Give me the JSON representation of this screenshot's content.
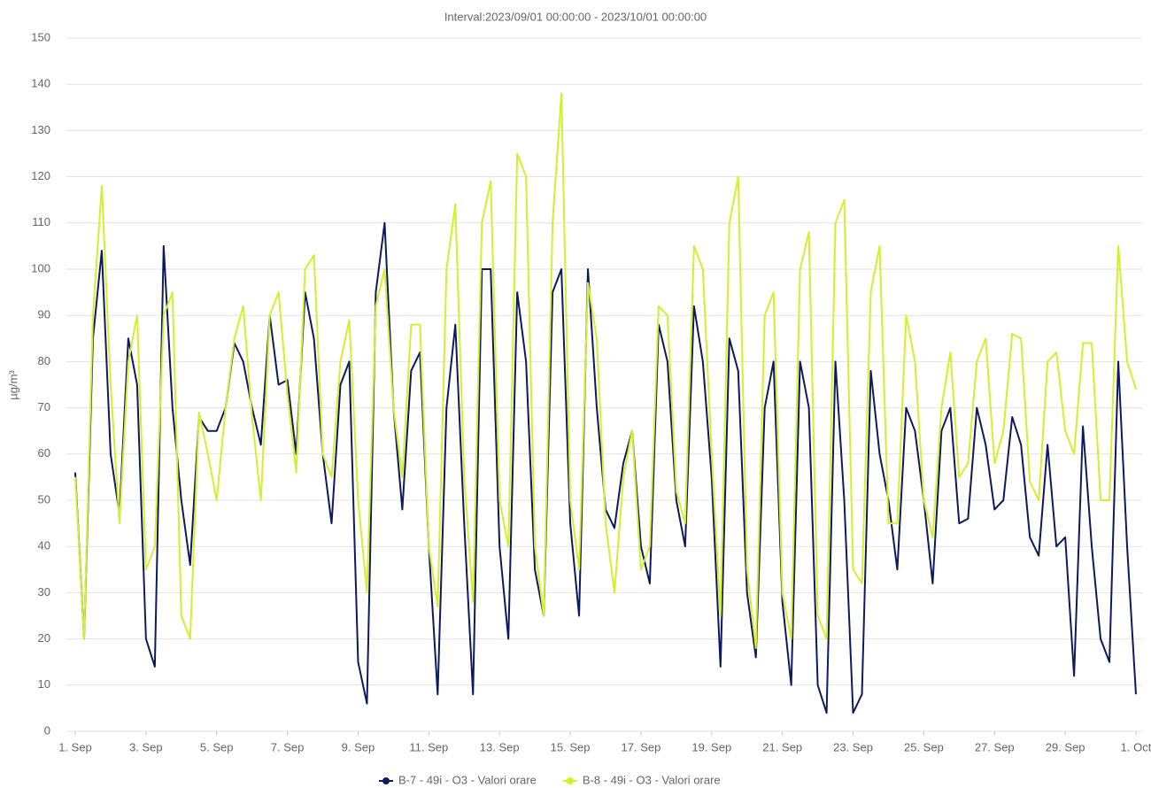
{
  "chart_data": {
    "type": "line",
    "title": "Interval:2023/09/01 00:00:00 - 2023/10/01 00:00:00",
    "y_label": "µg/m³",
    "x": [
      "2023-09-01 00:00",
      "2023-09-01 06:00",
      "2023-09-01 12:00",
      "2023-09-01 18:00",
      "2023-09-02 00:00",
      "2023-09-02 06:00",
      "2023-09-02 12:00",
      "2023-09-02 18:00",
      "2023-09-03 00:00",
      "2023-09-03 06:00",
      "2023-09-03 12:00",
      "2023-09-03 18:00",
      "2023-09-04 00:00",
      "2023-09-04 06:00",
      "2023-09-04 12:00",
      "2023-09-04 18:00",
      "2023-09-05 00:00",
      "2023-09-05 06:00",
      "2023-09-05 12:00",
      "2023-09-05 18:00",
      "2023-09-06 00:00",
      "2023-09-06 06:00",
      "2023-09-06 12:00",
      "2023-09-06 18:00",
      "2023-09-07 00:00",
      "2023-09-07 06:00",
      "2023-09-07 12:00",
      "2023-09-07 18:00",
      "2023-09-08 00:00",
      "2023-09-08 06:00",
      "2023-09-08 12:00",
      "2023-09-08 18:00",
      "2023-09-09 00:00",
      "2023-09-09 06:00",
      "2023-09-09 12:00",
      "2023-09-09 18:00",
      "2023-09-10 00:00",
      "2023-09-10 06:00",
      "2023-09-10 12:00",
      "2023-09-10 18:00",
      "2023-09-11 00:00",
      "2023-09-11 06:00",
      "2023-09-11 12:00",
      "2023-09-11 18:00",
      "2023-09-12 00:00",
      "2023-09-12 06:00",
      "2023-09-12 12:00",
      "2023-09-12 18:00",
      "2023-09-13 00:00",
      "2023-09-13 06:00",
      "2023-09-13 12:00",
      "2023-09-13 18:00",
      "2023-09-14 00:00",
      "2023-09-14 06:00",
      "2023-09-14 12:00",
      "2023-09-14 18:00",
      "2023-09-15 00:00",
      "2023-09-15 06:00",
      "2023-09-15 12:00",
      "2023-09-15 18:00",
      "2023-09-16 00:00",
      "2023-09-16 06:00",
      "2023-09-16 12:00",
      "2023-09-16 18:00",
      "2023-09-17 00:00",
      "2023-09-17 06:00",
      "2023-09-17 12:00",
      "2023-09-17 18:00",
      "2023-09-18 00:00",
      "2023-09-18 06:00",
      "2023-09-18 12:00",
      "2023-09-18 18:00",
      "2023-09-19 00:00",
      "2023-09-19 06:00",
      "2023-09-19 12:00",
      "2023-09-19 18:00",
      "2023-09-20 00:00",
      "2023-09-20 06:00",
      "2023-09-20 12:00",
      "2023-09-20 18:00",
      "2023-09-21 00:00",
      "2023-09-21 06:00",
      "2023-09-21 12:00",
      "2023-09-21 18:00",
      "2023-09-22 00:00",
      "2023-09-22 06:00",
      "2023-09-22 12:00",
      "2023-09-22 18:00",
      "2023-09-23 00:00",
      "2023-09-23 06:00",
      "2023-09-23 12:00",
      "2023-09-23 18:00",
      "2023-09-24 00:00",
      "2023-09-24 06:00",
      "2023-09-24 12:00",
      "2023-09-24 18:00",
      "2023-09-25 00:00",
      "2023-09-25 06:00",
      "2023-09-25 12:00",
      "2023-09-25 18:00",
      "2023-09-26 00:00",
      "2023-09-26 06:00",
      "2023-09-26 12:00",
      "2023-09-26 18:00",
      "2023-09-27 00:00",
      "2023-09-27 06:00",
      "2023-09-27 12:00",
      "2023-09-27 18:00",
      "2023-09-28 00:00",
      "2023-09-28 06:00",
      "2023-09-28 12:00",
      "2023-09-28 18:00",
      "2023-09-29 00:00",
      "2023-09-29 06:00",
      "2023-09-29 12:00",
      "2023-09-29 18:00",
      "2023-09-30 00:00",
      "2023-09-30 06:00",
      "2023-09-30 12:00",
      "2023-09-30 18:00",
      "2023-10-01 00:00"
    ],
    "series": [
      {
        "name": "B-7 - 49i - O3 - Valori orare",
        "color": "#0d1a5c",
        "values": [
          56,
          20,
          85,
          104,
          60,
          47,
          85,
          75,
          20,
          14,
          105,
          70,
          50,
          36,
          68,
          65,
          65,
          70,
          84,
          80,
          70,
          62,
          90,
          75,
          76,
          60,
          95,
          85,
          60,
          45,
          75,
          80,
          15,
          6,
          95,
          110,
          70,
          48,
          78,
          82,
          40,
          8,
          70,
          88,
          45,
          8,
          100,
          100,
          40,
          20,
          95,
          80,
          35,
          25,
          95,
          100,
          45,
          25,
          100,
          70,
          48,
          44,
          58,
          65,
          40,
          32,
          88,
          80,
          50,
          40,
          92,
          80,
          55,
          14,
          85,
          78,
          30,
          16,
          70,
          80,
          28,
          10,
          80,
          70,
          10,
          4,
          80,
          50,
          4,
          8,
          78,
          60,
          50,
          35,
          70,
          65,
          50,
          32,
          65,
          70,
          45,
          46,
          70,
          62,
          48,
          50,
          68,
          62,
          42,
          38,
          62,
          40,
          42,
          12,
          66,
          40,
          20,
          15,
          80,
          40,
          8
        ]
      },
      {
        "name": "B-8 - 49i - O3 - Valori orare",
        "color": "#d2f02e",
        "values": [
          55,
          20,
          90,
          118,
          75,
          45,
          80,
          90,
          35,
          40,
          90,
          95,
          25,
          20,
          69,
          60,
          50,
          70,
          85,
          92,
          68,
          50,
          90,
          95,
          73,
          56,
          100,
          103,
          60,
          55,
          80,
          89,
          50,
          30,
          92,
          100,
          70,
          55,
          88,
          88,
          40,
          27,
          100,
          114,
          55,
          28,
          110,
          119,
          50,
          40,
          125,
          120,
          40,
          25,
          110,
          138,
          50,
          35,
          97,
          85,
          45,
          30,
          55,
          65,
          35,
          40,
          92,
          90,
          52,
          45,
          105,
          100,
          60,
          25,
          110,
          120,
          35,
          18,
          90,
          95,
          30,
          20,
          100,
          108,
          25,
          20,
          110,
          115,
          35,
          32,
          95,
          105,
          45,
          45,
          90,
          80,
          50,
          42,
          70,
          82,
          55,
          58,
          80,
          85,
          58,
          65,
          86,
          85,
          54,
          50,
          80,
          82,
          65,
          60,
          84,
          84,
          50,
          50,
          105,
          80,
          74
        ]
      }
    ],
    "xlim": [
      "2023-09-01 00:00",
      "2023-10-01 00:00"
    ],
    "xticks": [
      {
        "value": "2023-09-01 00:00",
        "label": "1. Sep"
      },
      {
        "value": "2023-09-03 00:00",
        "label": "3. Sep"
      },
      {
        "value": "2023-09-05 00:00",
        "label": "5. Sep"
      },
      {
        "value": "2023-09-07 00:00",
        "label": "7. Sep"
      },
      {
        "value": "2023-09-09 00:00",
        "label": "9. Sep"
      },
      {
        "value": "2023-09-11 00:00",
        "label": "11. Sep"
      },
      {
        "value": "2023-09-13 00:00",
        "label": "13. Sep"
      },
      {
        "value": "2023-09-15 00:00",
        "label": "15. Sep"
      },
      {
        "value": "2023-09-17 00:00",
        "label": "17. Sep"
      },
      {
        "value": "2023-09-19 00:00",
        "label": "19. Sep"
      },
      {
        "value": "2023-09-21 00:00",
        "label": "21. Sep"
      },
      {
        "value": "2023-09-23 00:00",
        "label": "23. Sep"
      },
      {
        "value": "2023-09-25 00:00",
        "label": "25. Sep"
      },
      {
        "value": "2023-09-27 00:00",
        "label": "27. Sep"
      },
      {
        "value": "2023-09-29 00:00",
        "label": "29. Sep"
      },
      {
        "value": "2023-10-01 00:00",
        "label": "1. Oct"
      }
    ],
    "ylim": [
      0,
      150
    ],
    "yticks": [
      0,
      10,
      20,
      30,
      40,
      50,
      60,
      70,
      80,
      90,
      100,
      110,
      120,
      130,
      140,
      150
    ],
    "grid": true,
    "legend": "bottom"
  }
}
